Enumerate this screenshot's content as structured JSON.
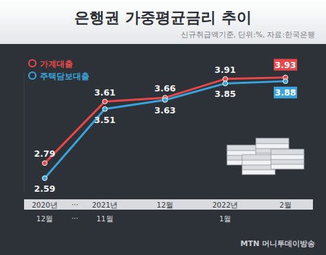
{
  "chart_data": {
    "type": "line",
    "title": "은행권 가중평균금리 추이",
    "subtitle": "신규취급액기준, 단위:%, 자료:한국은행",
    "categories": [
      "2020년 12월",
      "2021년 11월",
      "12월",
      "2022년 1월",
      "2월"
    ],
    "series": [
      {
        "name": "가계대출",
        "color": "#e8474a",
        "values": [
          2.79,
          3.61,
          3.66,
          3.91,
          3.93
        ]
      },
      {
        "name": "주택담보대출",
        "color": "#3ba3db",
        "values": [
          2.59,
          3.51,
          3.63,
          3.85,
          3.88
        ]
      }
    ],
    "ylim": [
      2.4,
      4.0
    ],
    "tick_labels": false,
    "grid": false,
    "legend": "upper left",
    "data_labels": true,
    "marker": "circle",
    "annotations": [
      "···"
    ],
    "source": "MTN 머니투데이방송"
  }
}
